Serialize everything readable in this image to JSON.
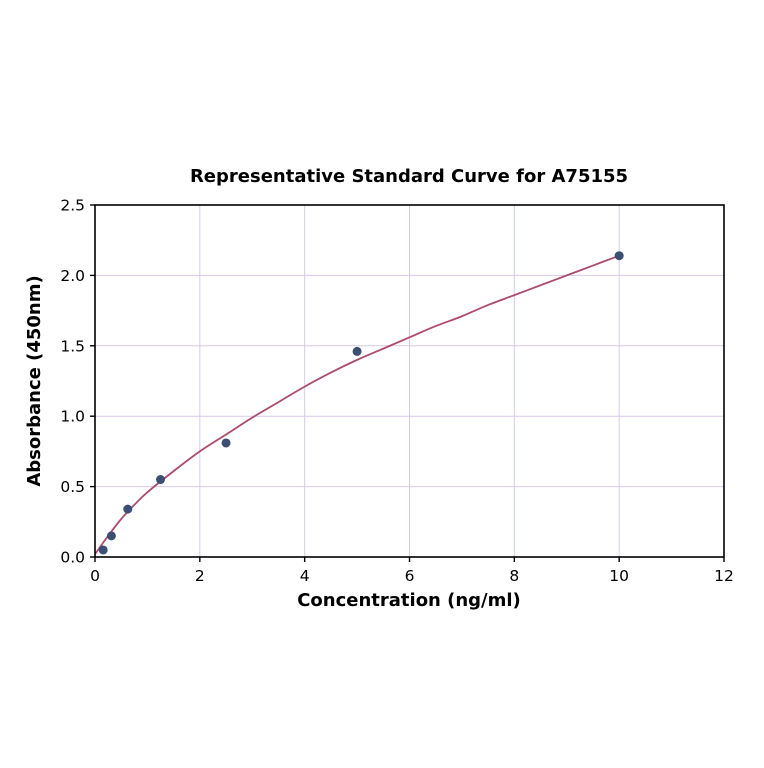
{
  "chart_data": {
    "type": "scatter",
    "title": "Representative Standard Curve for A75155",
    "xlabel": "Concentration (ng/ml)",
    "ylabel": "Absorbance (450nm)",
    "xlim": [
      0,
      12
    ],
    "ylim": [
      0,
      2.5
    ],
    "x_ticks": [
      0,
      2,
      4,
      6,
      8,
      10,
      12
    ],
    "x_tick_labels": [
      "0",
      "2",
      "4",
      "6",
      "8",
      "10",
      "12"
    ],
    "y_ticks": [
      0.0,
      0.5,
      1.0,
      1.5,
      2.0,
      2.5
    ],
    "y_tick_labels": [
      "0.0",
      "0.5",
      "1.0",
      "1.5",
      "2.0",
      "2.5"
    ],
    "grid": true,
    "legend": "none",
    "points": {
      "x": [
        0.156,
        0.3125,
        0.625,
        1.25,
        2.5,
        5,
        10
      ],
      "y": [
        0.05,
        0.15,
        0.34,
        0.55,
        0.81,
        1.46,
        2.14
      ]
    },
    "fit_curve": {
      "x": [
        0,
        0.25,
        0.5,
        0.75,
        1,
        1.5,
        2,
        2.5,
        3,
        3.5,
        4,
        4.5,
        5,
        5.5,
        6,
        6.5,
        7,
        7.5,
        8,
        8.5,
        9,
        9.5,
        10
      ],
      "y": [
        0.02,
        0.15,
        0.27,
        0.37,
        0.46,
        0.61,
        0.75,
        0.87,
        0.99,
        1.1,
        1.21,
        1.31,
        1.4,
        1.48,
        1.56,
        1.64,
        1.71,
        1.79,
        1.86,
        1.93,
        2.0,
        2.07,
        2.14
      ]
    },
    "colors": {
      "point": "#3b4f75",
      "curve": "#b04a6c",
      "grid": "#d9c9e9",
      "axis": "#000000",
      "background": "#ffffff"
    }
  }
}
